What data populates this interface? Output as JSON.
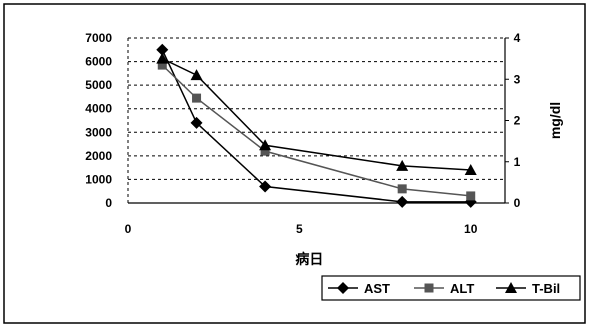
{
  "chart_data": {
    "type": "line",
    "xlabel": "病日",
    "ylabel_right": "mg/dl",
    "xlim": [
      0,
      11
    ],
    "ylim_left": [
      0,
      7000
    ],
    "ylim_right": [
      0,
      4
    ],
    "x_ticks": [
      "0",
      "5",
      "10"
    ],
    "y_left_ticks": [
      "0",
      "1000",
      "2000",
      "3000",
      "4000",
      "5000",
      "6000",
      "7000"
    ],
    "y_right_ticks": [
      "0",
      "1",
      "2",
      "3",
      "4"
    ],
    "grid": "horizontal dashed",
    "legend_position": "bottom-right",
    "series": [
      {
        "name": "AST",
        "axis": "left",
        "marker": "diamond",
        "color": "#000000",
        "x": [
          1,
          2,
          4,
          8,
          10
        ],
        "y": [
          6500,
          3400,
          700,
          50,
          50
        ]
      },
      {
        "name": "ALT",
        "axis": "left",
        "marker": "square",
        "color": "#555555",
        "x": [
          1,
          2,
          4,
          8,
          10
        ],
        "y": [
          5850,
          4450,
          2200,
          600,
          300
        ]
      },
      {
        "name": "T-Bil",
        "axis": "right",
        "marker": "triangle",
        "color": "#000000",
        "x": [
          1,
          2,
          4,
          8,
          10
        ],
        "y": [
          3.5,
          3.1,
          1.4,
          0.9,
          0.8
        ]
      }
    ]
  }
}
